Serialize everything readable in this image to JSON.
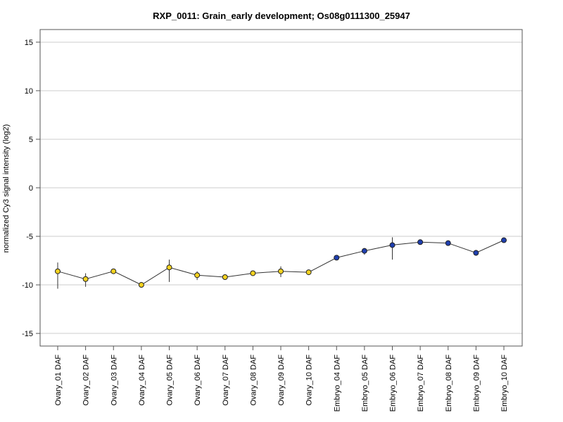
{
  "chart_data": {
    "type": "line",
    "title": "RXP_0011: Grain_early development; Os08g0111300_25947",
    "xlabel": "",
    "ylabel": "normalized Cy3 signal intensity (log2)",
    "ylim": [
      -16.3,
      16.3
    ],
    "yticks": [
      -15,
      -10,
      -5,
      0,
      5,
      10,
      15
    ],
    "grid": "horizontal",
    "categories": [
      "Ovary_01 DAF",
      "Ovary_02 DAF",
      "Ovary_03 DAF",
      "Ovary_04 DAF",
      "Ovary_05 DAF",
      "Ovary_06 DAF",
      "Ovary_07 DAF",
      "Ovary_08 DAF",
      "Ovary_09 DAF",
      "Ovary_10 DAF",
      "Embryo_04 DAF",
      "Embryo_05 DAF",
      "Embryo_06 DAF",
      "Embryo_07 DAF",
      "Embryo_08 DAF",
      "Embryo_09 DAF",
      "Embryo_10 DAF"
    ],
    "values": [
      -8.6,
      -9.4,
      -8.6,
      -10.0,
      -8.2,
      -9.0,
      -9.2,
      -8.8,
      -8.6,
      -8.7,
      -7.2,
      -6.5,
      -5.9,
      -5.6,
      -5.7,
      -6.7,
      -5.4
    ],
    "error_low": [
      -10.4,
      -10.2,
      -8.7,
      -10.1,
      -9.7,
      -9.5,
      -9.3,
      -8.9,
      -9.2,
      -8.8,
      -7.3,
      -6.9,
      -7.4,
      -5.7,
      -5.8,
      -7.0,
      -5.5
    ],
    "error_high": [
      -7.7,
      -8.8,
      -8.4,
      -9.8,
      -7.4,
      -8.6,
      -9.0,
      -8.6,
      -8.1,
      -8.5,
      -7.1,
      -6.2,
      -5.1,
      -5.4,
      -5.6,
      -6.4,
      -5.2
    ],
    "point_colors": [
      "#f4d21f",
      "#f4d21f",
      "#f4d21f",
      "#f4d21f",
      "#f4d21f",
      "#f4d21f",
      "#f4d21f",
      "#f4d21f",
      "#f4d21f",
      "#f4d21f",
      "#1f3fb0",
      "#1f3fb0",
      "#1f3fb0",
      "#1f3fb0",
      "#1f3fb0",
      "#1f3fb0",
      "#1f3fb0"
    ],
    "line_color": "#333333",
    "grid_color": "#cccccc"
  }
}
